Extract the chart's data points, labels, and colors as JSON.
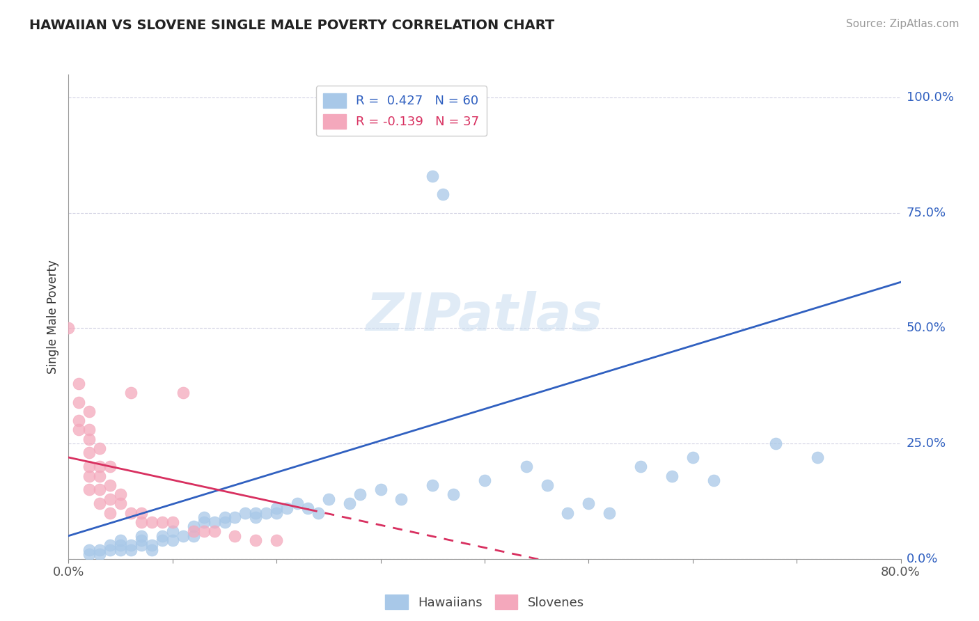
{
  "title": "HAWAIIAN VS SLOVENE SINGLE MALE POVERTY CORRELATION CHART",
  "source": "Source: ZipAtlas.com",
  "ylabel": "Single Male Poverty",
  "ytick_labels": [
    "0.0%",
    "25.0%",
    "50.0%",
    "75.0%",
    "100.0%"
  ],
  "ytick_vals": [
    0.0,
    0.25,
    0.5,
    0.75,
    1.0
  ],
  "xlim": [
    0.0,
    0.8
  ],
  "ylim": [
    0.0,
    1.05
  ],
  "watermark": "ZIPatlas",
  "legend_r1": "R =  0.427   N = 60",
  "legend_r2": "R = -0.139   N = 37",
  "hawaiian_color": "#A8C8E8",
  "slovene_color": "#F4A8BC",
  "trendline_hawaiian_color": "#3060C0",
  "trendline_slovene_color": "#D83060",
  "hawaiian_trendline": [
    [
      0.0,
      0.05
    ],
    [
      0.8,
      0.6
    ]
  ],
  "slovene_trendline": [
    [
      0.0,
      0.22
    ],
    [
      0.45,
      0.0
    ]
  ],
  "hawaiian_points": [
    [
      0.02,
      0.02
    ],
    [
      0.02,
      0.01
    ],
    [
      0.03,
      0.02
    ],
    [
      0.03,
      0.01
    ],
    [
      0.04,
      0.02
    ],
    [
      0.04,
      0.03
    ],
    [
      0.05,
      0.02
    ],
    [
      0.05,
      0.03
    ],
    [
      0.05,
      0.04
    ],
    [
      0.06,
      0.02
    ],
    [
      0.06,
      0.03
    ],
    [
      0.07,
      0.03
    ],
    [
      0.07,
      0.04
    ],
    [
      0.07,
      0.05
    ],
    [
      0.08,
      0.02
    ],
    [
      0.08,
      0.03
    ],
    [
      0.09,
      0.04
    ],
    [
      0.09,
      0.05
    ],
    [
      0.1,
      0.04
    ],
    [
      0.1,
      0.06
    ],
    [
      0.11,
      0.05
    ],
    [
      0.12,
      0.05
    ],
    [
      0.12,
      0.07
    ],
    [
      0.13,
      0.08
    ],
    [
      0.13,
      0.09
    ],
    [
      0.14,
      0.08
    ],
    [
      0.15,
      0.08
    ],
    [
      0.15,
      0.09
    ],
    [
      0.16,
      0.09
    ],
    [
      0.17,
      0.1
    ],
    [
      0.18,
      0.09
    ],
    [
      0.18,
      0.1
    ],
    [
      0.19,
      0.1
    ],
    [
      0.2,
      0.1
    ],
    [
      0.2,
      0.11
    ],
    [
      0.21,
      0.11
    ],
    [
      0.22,
      0.12
    ],
    [
      0.23,
      0.11
    ],
    [
      0.24,
      0.1
    ],
    [
      0.25,
      0.13
    ],
    [
      0.27,
      0.12
    ],
    [
      0.28,
      0.14
    ],
    [
      0.3,
      0.15
    ],
    [
      0.32,
      0.13
    ],
    [
      0.35,
      0.16
    ],
    [
      0.37,
      0.14
    ],
    [
      0.4,
      0.17
    ],
    [
      0.44,
      0.2
    ],
    [
      0.46,
      0.16
    ],
    [
      0.48,
      0.1
    ],
    [
      0.5,
      0.12
    ],
    [
      0.52,
      0.1
    ],
    [
      0.55,
      0.2
    ],
    [
      0.58,
      0.18
    ],
    [
      0.6,
      0.22
    ],
    [
      0.62,
      0.17
    ],
    [
      0.68,
      0.25
    ],
    [
      0.72,
      0.22
    ],
    [
      0.35,
      0.83
    ],
    [
      0.36,
      0.79
    ]
  ],
  "slovene_points": [
    [
      0.0,
      0.5
    ],
    [
      0.01,
      0.38
    ],
    [
      0.01,
      0.34
    ],
    [
      0.01,
      0.3
    ],
    [
      0.01,
      0.28
    ],
    [
      0.02,
      0.32
    ],
    [
      0.02,
      0.28
    ],
    [
      0.02,
      0.26
    ],
    [
      0.02,
      0.23
    ],
    [
      0.02,
      0.2
    ],
    [
      0.02,
      0.18
    ],
    [
      0.02,
      0.15
    ],
    [
      0.03,
      0.24
    ],
    [
      0.03,
      0.2
    ],
    [
      0.03,
      0.18
    ],
    [
      0.03,
      0.15
    ],
    [
      0.03,
      0.12
    ],
    [
      0.04,
      0.2
    ],
    [
      0.04,
      0.16
    ],
    [
      0.04,
      0.13
    ],
    [
      0.04,
      0.1
    ],
    [
      0.05,
      0.14
    ],
    [
      0.05,
      0.12
    ],
    [
      0.06,
      0.36
    ],
    [
      0.06,
      0.1
    ],
    [
      0.07,
      0.1
    ],
    [
      0.07,
      0.08
    ],
    [
      0.08,
      0.08
    ],
    [
      0.09,
      0.08
    ],
    [
      0.1,
      0.08
    ],
    [
      0.11,
      0.36
    ],
    [
      0.12,
      0.06
    ],
    [
      0.13,
      0.06
    ],
    [
      0.14,
      0.06
    ],
    [
      0.16,
      0.05
    ],
    [
      0.18,
      0.04
    ],
    [
      0.2,
      0.04
    ]
  ]
}
